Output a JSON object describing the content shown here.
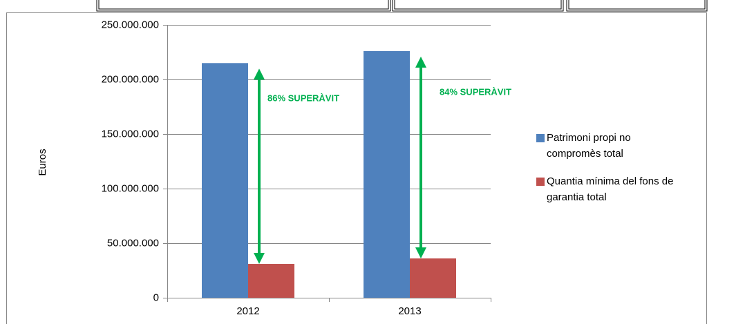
{
  "chart_data": {
    "type": "bar",
    "y_label": "Euros",
    "categories": [
      "2012",
      "2013"
    ],
    "series": [
      {
        "name": "Patrimoni propi no compromès total",
        "color": "#4f81bd",
        "values": [
          215000000,
          226000000
        ]
      },
      {
        "name": "Quantia mínima del fons de garantia total",
        "color": "#c0504d",
        "values": [
          31000000,
          36000000
        ]
      }
    ],
    "annotations": [
      "86% SUPERÀVIT",
      "84% SUPERÀVIT"
    ],
    "annotation_color": "#00b050",
    "ylim": [
      0,
      250000000
    ],
    "yticks": [
      0,
      {
        "value": 50000000,
        "label": "50.000.000"
      },
      {
        "value": 100000000,
        "label": "100.000.000"
      },
      {
        "value": 150000000,
        "label": "150.000.000"
      },
      {
        "value": 200000000,
        "label": "200.000.000"
      },
      {
        "value": 250000000,
        "label": "250.000.000"
      }
    ],
    "grid": true,
    "legend": "right"
  }
}
